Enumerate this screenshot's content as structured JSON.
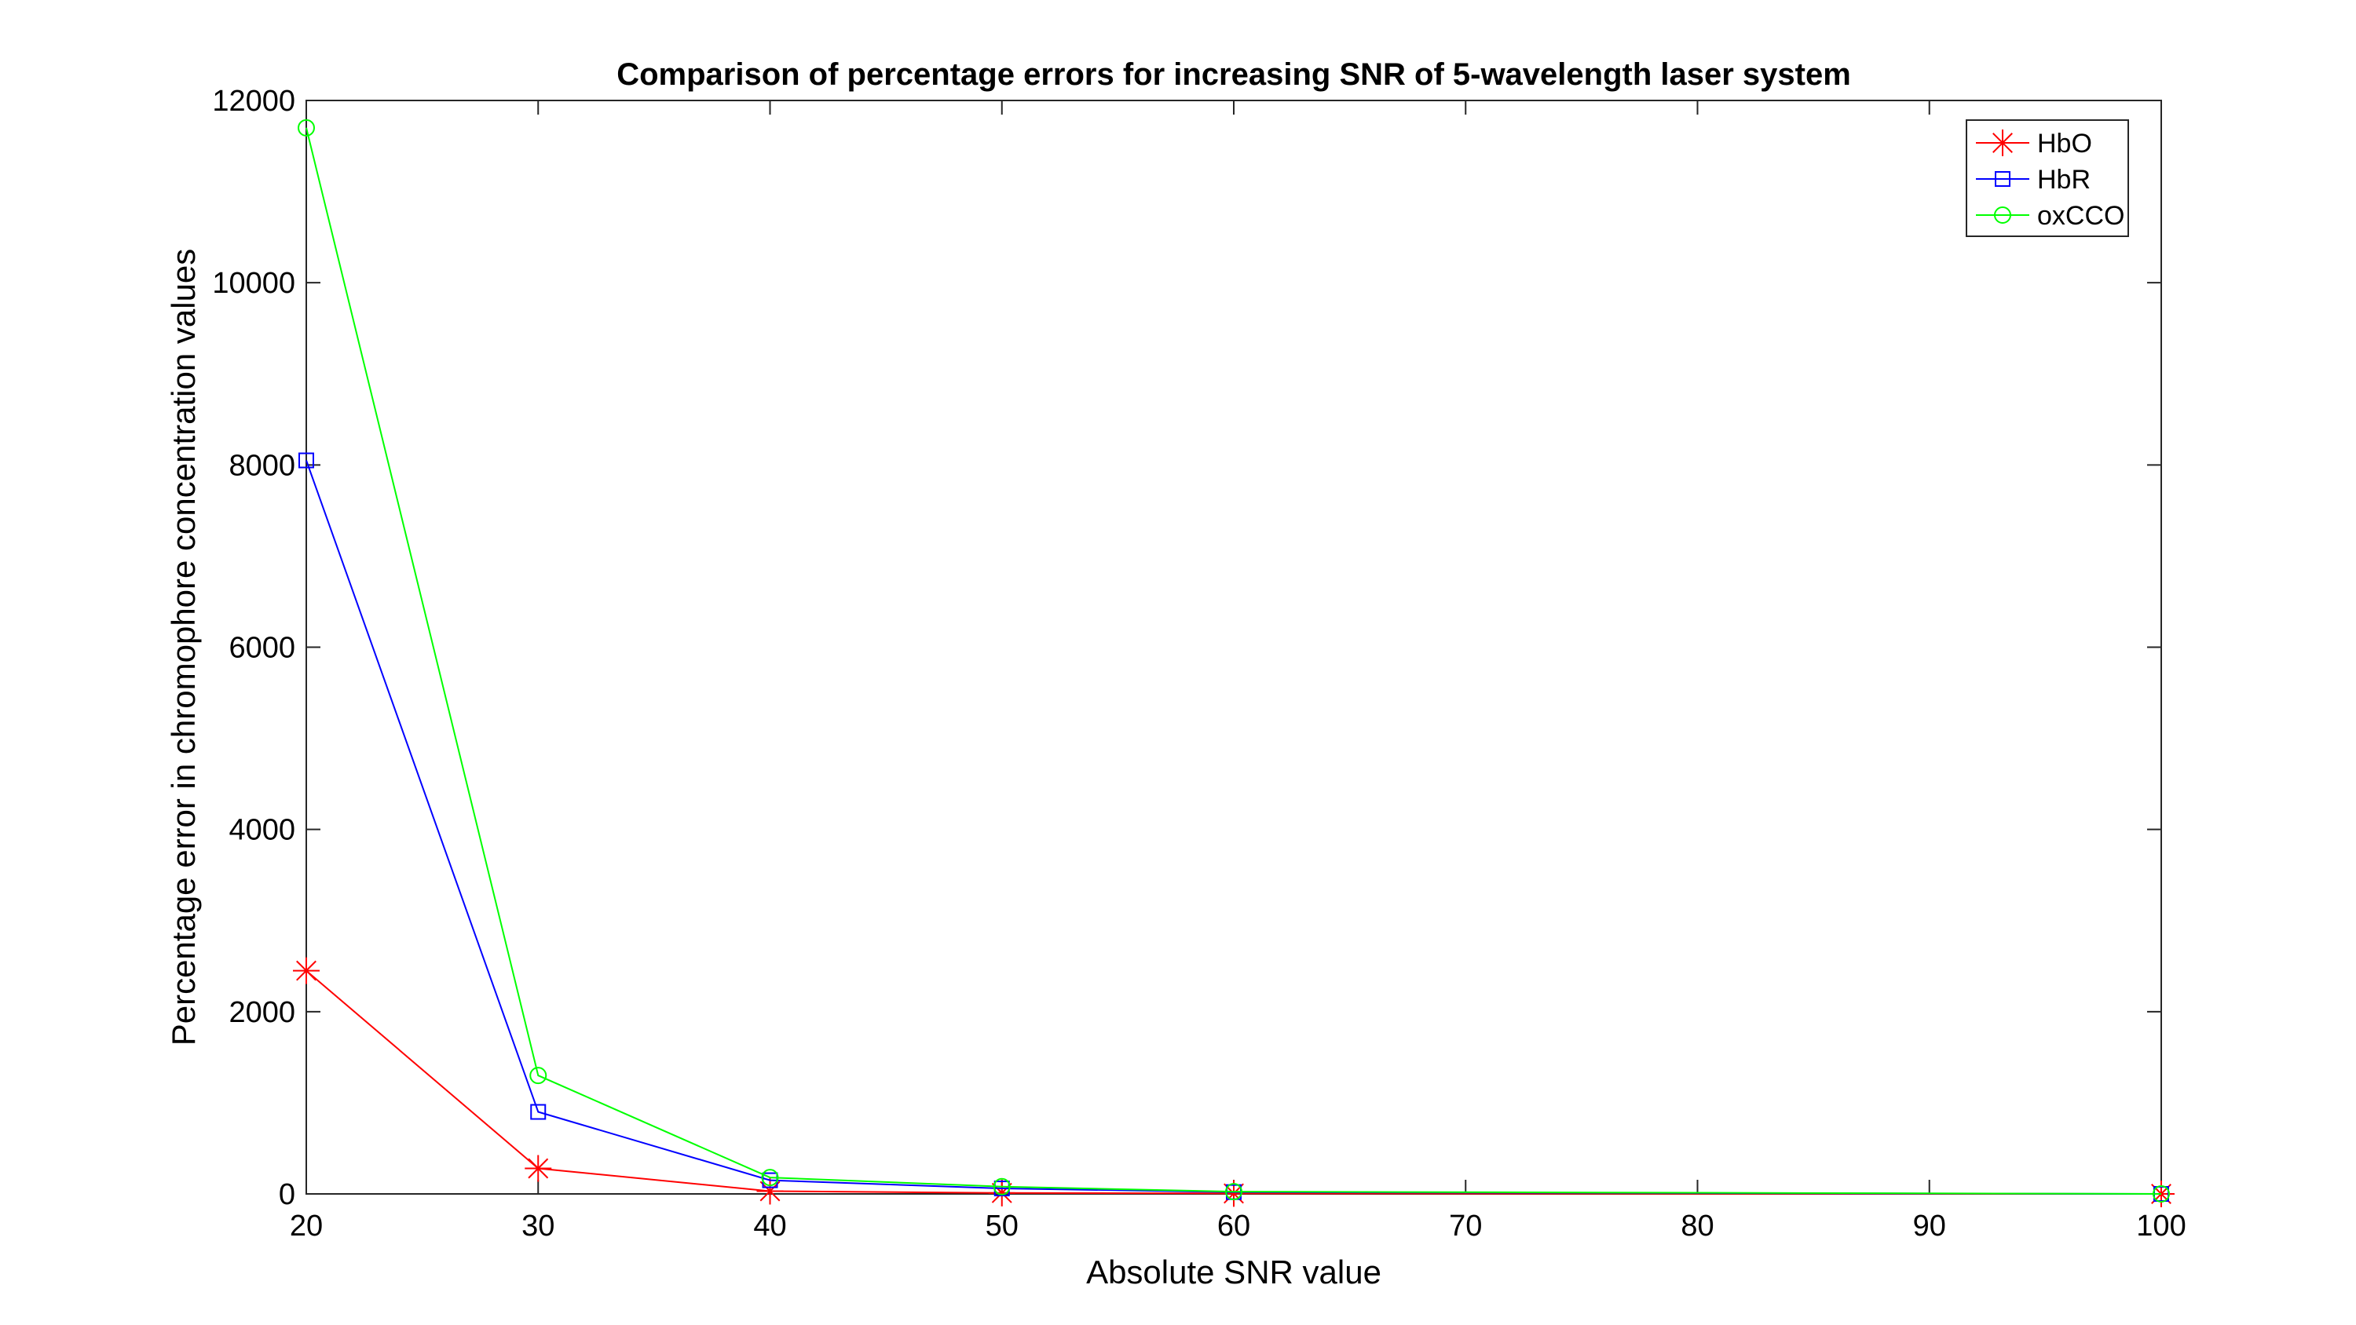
{
  "chart_data": {
    "type": "line",
    "title": "Comparison of percentage errors for increasing SNR of 5-wavelength laser system",
    "xlabel": "Absolute SNR value",
    "ylabel": "Percentage error in chromophore concentration values",
    "xlim": [
      20,
      100
    ],
    "ylim": [
      0,
      12000
    ],
    "x_ticks": [
      "20",
      "30",
      "40",
      "50",
      "60",
      "70",
      "80",
      "90",
      "100"
    ],
    "y_ticks": [
      "0",
      "2000",
      "4000",
      "6000",
      "8000",
      "10000",
      "12000"
    ],
    "grid": false,
    "legend_position": "top-right",
    "x": [
      20,
      30,
      40,
      50,
      60,
      100
    ],
    "series": [
      {
        "name": "HbO",
        "color": "#ff0000",
        "marker": "asterisk",
        "values": [
          2450,
          280,
          30,
          10,
          5,
          0
        ]
      },
      {
        "name": "HbR",
        "color": "#0000ff",
        "marker": "square",
        "values": [
          8050,
          900,
          150,
          60,
          20,
          0
        ]
      },
      {
        "name": "oxCCO",
        "color": "#00ff00",
        "marker": "circle",
        "values": [
          11700,
          1300,
          180,
          80,
          25,
          0
        ]
      }
    ]
  }
}
